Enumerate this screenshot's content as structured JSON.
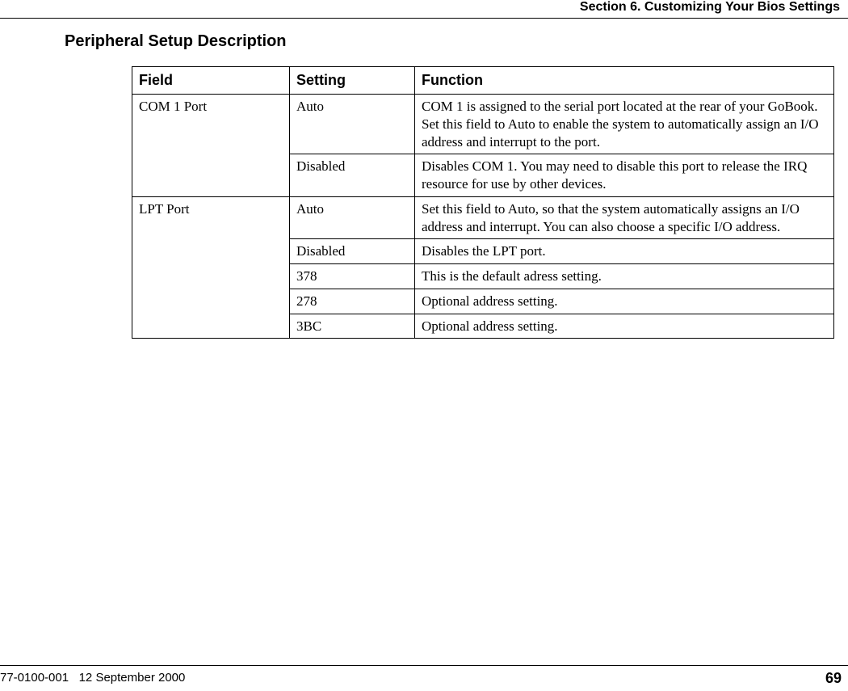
{
  "header": {
    "section": "Section 6. Customizing Your Bios Settings"
  },
  "title": "Peripheral Setup Description",
  "table": {
    "columns": {
      "field": "Field",
      "setting": "Setting",
      "function": "Function"
    },
    "rows": {
      "com1": {
        "field": "COM 1 Port",
        "auto": {
          "setting": "Auto",
          "function": "COM 1 is assigned to the serial port located at the rear of your GoBook. Set this field to Auto to enable the system to automatically assign an I/O address and interrupt to the port."
        },
        "disabled": {
          "setting": "Disabled",
          "function": "Disables COM 1. You may need to disable this port to release the IRQ resource for use by other devices."
        }
      },
      "lpt": {
        "field": "LPT Port",
        "auto": {
          "setting": "Auto",
          "function": "Set this field to Auto, so that the system automatically assigns an I/O address and interrupt. You can also choose a specific I/O address."
        },
        "disabled": {
          "setting": "Disabled",
          "function": "Disables the LPT port."
        },
        "a378": {
          "setting": "378",
          "function": "This is the default adress setting."
        },
        "a278": {
          "setting": "278",
          "function": "Optional address setting."
        },
        "a3bc": {
          "setting": "3BC",
          "function": "Optional address setting."
        }
      }
    }
  },
  "footer": {
    "doc_id": "77-0100-001",
    "date": "12 September 2000",
    "page": "69"
  }
}
